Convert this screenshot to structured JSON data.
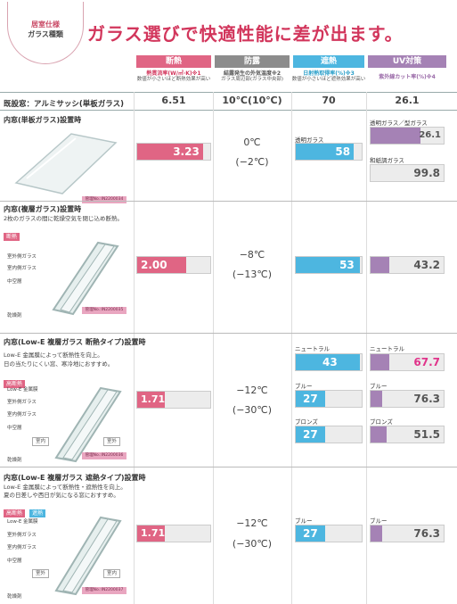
{
  "header": {
    "badge_line1": "居室仕様",
    "badge_line2": "ガラス種類",
    "title": "ガラス選びで快適性能に差が出ます。"
  },
  "columns": [
    {
      "name": "断熱",
      "sub1": "熱貫流率(W/㎡·K)※1",
      "sub2": "数値が小さいほど断熱効果が高い",
      "color": "#e06584"
    },
    {
      "name": "防露",
      "sub1": "結露発生の外気温度※2",
      "sub2": "ガラス周辺部(ガラス中央部)",
      "color": "#8c8c8c"
    },
    {
      "name": "遮熱",
      "sub1": "日射熱取得率(%)※3",
      "sub2": "数値が小さいほど遮熱効果が高い",
      "color": "#4db6e0"
    },
    {
      "name": "UV対策",
      "sub1": "紫外線カット率(%)※4",
      "sub2": "",
      "color": "#a582b5"
    }
  ],
  "baseline": {
    "label": "既設窓：アルミサッシ(単板ガラス)",
    "heat": "6.51",
    "dew": "10℃(10℃)",
    "solar": "70",
    "uv": "26.1"
  },
  "rows": [
    {
      "title": "内窓(単板ガラス)設置時",
      "desc": "",
      "cert": "管理No.:IN2200034",
      "heat": {
        "value": "3.23",
        "frac": 0.9
      },
      "dew": [
        "0℃",
        "(−2℃)"
      ],
      "solar": [
        {
          "label": "透明ガラス",
          "value": "58",
          "frac": 0.88
        }
      ],
      "uv": [
        {
          "label": "透明ガラス／型ガラス",
          "value": "26.1",
          "frac": 0.68
        },
        {
          "label": "和紙調ガラス",
          "value": "99.8",
          "frac": 0.0
        }
      ]
    },
    {
      "title": "内窓(複層ガラス)設置時",
      "desc": "2枚のガラスの間に乾燥空気を閉じ込め断熱。",
      "tag1": "断熱",
      "parts": [
        "室外側ガラス",
        "室内側ガラス",
        "中空層",
        "乾燥剤"
      ],
      "cert": "管理No.:IN2200035",
      "heat": {
        "value": "2.00",
        "frac": 0.67
      },
      "dew": [
        "−8℃",
        "(−13℃)"
      ],
      "solar": [
        {
          "label": "",
          "value": "53",
          "frac": 0.97
        }
      ],
      "uv": [
        {
          "label": "",
          "value": "43.2",
          "frac": 0.25
        }
      ]
    },
    {
      "title": "内窓(Low-E 複層ガラス 断熱タイプ)設置時",
      "desc": "Low-E 金属膜によって断熱性を向上。",
      "desc2": "日の当たりにくい窓、寒冷地におすすめ。",
      "tag1": "高断熱",
      "parts": [
        "Low-E 金属膜",
        "室外側ガラス",
        "室内側ガラス",
        "中空層",
        "乾燥剤"
      ],
      "boxes": [
        "室内",
        "室外"
      ],
      "cert": "管理No.:IN2200036",
      "heat": {
        "value": "1.71",
        "frac": 0.38
      },
      "dew": [
        "−12℃",
        "(−30℃)"
      ],
      "solar": [
        {
          "label": "ニュートラル",
          "value": "43",
          "frac": 0.97
        },
        {
          "label": "ブルー",
          "value": "27",
          "frac": 0.45
        },
        {
          "label": "ブロンズ",
          "value": "27",
          "frac": 0.45
        }
      ],
      "uv": [
        {
          "label": "ニュートラル",
          "value": "67.7",
          "frac": 0.25
        },
        {
          "label": "ブルー",
          "value": "76.3",
          "frac": 0.16
        },
        {
          "label": "ブロンズ",
          "value": "51.5",
          "frac": 0.22
        }
      ]
    },
    {
      "title": "内窓(Low-E 複層ガラス 遮熱タイプ)設置時",
      "desc": "Low-E 金属膜によって断熱性・遮熱性を向上。",
      "desc2": "夏の日差しや西日が気になる窓におすすめ。",
      "tag1": "高断熱",
      "tag2": "遮熱",
      "parts": [
        "Low-E 金属膜",
        "室外側ガラス",
        "室内側ガラス",
        "中空層",
        "乾燥剤"
      ],
      "boxes": [
        "室外",
        "室内"
      ],
      "cert": "管理No.:IN2200037",
      "heat": {
        "value": "1.71",
        "frac": 0.38
      },
      "dew": [
        "−12℃",
        "(−30℃)"
      ],
      "solar": [
        {
          "label": "ブルー",
          "value": "27",
          "frac": 0.45
        }
      ],
      "uv": [
        {
          "label": "ブルー",
          "value": "76.3",
          "frac": 0.16
        }
      ]
    }
  ]
}
